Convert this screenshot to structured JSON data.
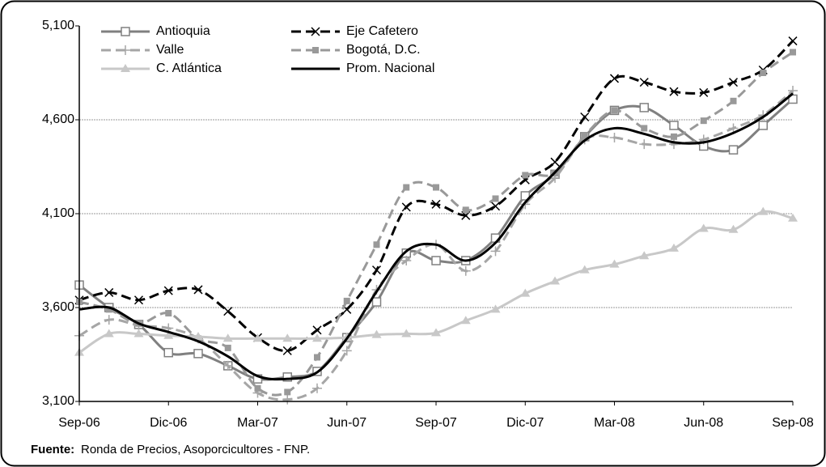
{
  "chart_data": {
    "type": "line",
    "categories": [
      "Sep-06",
      null,
      null,
      "Dic-06",
      null,
      null,
      "Mar-07",
      null,
      null,
      "Jun-07",
      null,
      null,
      "Sep-07",
      null,
      null,
      "Dic-07",
      null,
      null,
      "Mar-08",
      null,
      null,
      "Jun-08",
      null,
      null,
      "Sep-08"
    ],
    "series": [
      {
        "name": "Antioquia",
        "color": "#808080",
        "dash": "solid",
        "marker": "square-open",
        "values": [
          3720,
          3600,
          3510,
          3360,
          3355,
          3290,
          3220,
          3230,
          3260,
          3440,
          3630,
          3890,
          3850,
          3850,
          3970,
          4195,
          4310,
          4510,
          4650,
          4665,
          4570,
          4460,
          4440,
          4570,
          4710
        ]
      },
      {
        "name": "Eje Cafetero",
        "color": "#000000",
        "dash": "dashed",
        "marker": "x",
        "values": [
          3640,
          3680,
          3640,
          3690,
          3695,
          3580,
          3440,
          3370,
          3480,
          3590,
          3800,
          4135,
          4150,
          4090,
          4140,
          4280,
          4375,
          4615,
          4820,
          4800,
          4750,
          4745,
          4800,
          4865,
          5020
        ]
      },
      {
        "name": "Valle",
        "color": "#a6a6a6",
        "dash": "dashed",
        "marker": "plus",
        "values": [
          3450,
          3535,
          3505,
          3490,
          3435,
          3290,
          3145,
          3110,
          3170,
          3370,
          3695,
          3850,
          3935,
          3795,
          3900,
          4150,
          4290,
          4495,
          4505,
          4470,
          4470,
          4495,
          4555,
          4625,
          4755
        ]
      },
      {
        "name": "Bogotá, D.C.",
        "color": "#999999",
        "dash": "dashed",
        "marker": "square",
        "values": [
          3630,
          3590,
          3515,
          3570,
          3435,
          3385,
          3170,
          3150,
          3335,
          3635,
          3935,
          4240,
          4240,
          4120,
          4180,
          4305,
          4315,
          4515,
          4650,
          4555,
          4510,
          4595,
          4700,
          4850,
          4960
        ]
      },
      {
        "name": "C. Atlántica",
        "color": "#c8c8c8",
        "dash": "solid",
        "marker": "triangle",
        "values": [
          3360,
          3460,
          3460,
          3450,
          3445,
          3435,
          3435,
          3435,
          3435,
          3440,
          3455,
          3460,
          3465,
          3530,
          3590,
          3675,
          3740,
          3800,
          3830,
          3875,
          3915,
          4020,
          4015,
          4110,
          4075
        ]
      },
      {
        "name": "Prom. Nacional",
        "color": "#000000",
        "dash": "solid",
        "marker": "none",
        "values": [
          3590,
          3600,
          3515,
          3470,
          3420,
          3340,
          3235,
          3220,
          3255,
          3435,
          3685,
          3900,
          3935,
          3850,
          3945,
          4160,
          4320,
          4490,
          4555,
          4525,
          4480,
          4480,
          4530,
          4615,
          4740
        ]
      }
    ],
    "ylim": [
      3100,
      5100
    ],
    "yticks": [
      {
        "value": 3100,
        "label": "3,100"
      },
      {
        "value": 3600,
        "label": "3,600"
      },
      {
        "value": 4100,
        "label": "4,100"
      },
      {
        "value": 4600,
        "label": "4,600"
      },
      {
        "value": 5100,
        "label": "5,100"
      }
    ],
    "grid": true,
    "legend": "top-left",
    "source_label": "Fuente:",
    "source": "Ronda de Precios, Asoporcicultores  - FNP."
  }
}
